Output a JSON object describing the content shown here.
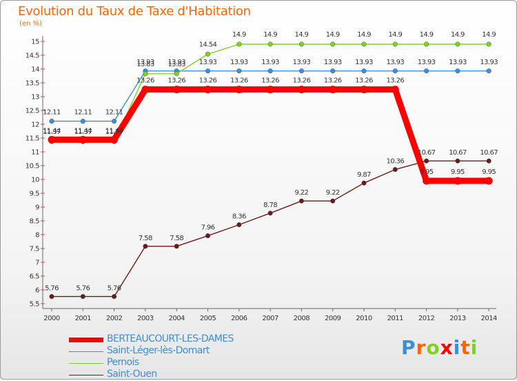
{
  "chart_data": {
    "type": "line",
    "title": "Evolution du Taux de Taxe d'Habitation",
    "ylabel": "(en %)",
    "xlabel": "",
    "ylim": [
      5.5,
      15
    ],
    "yticks": [
      "5.5",
      "6",
      "6.5",
      "7",
      "7.5",
      "8",
      "8.5",
      "9",
      "9.5",
      "10",
      "10.5",
      "11",
      "11.5",
      "12",
      "12.5",
      "13",
      "13.5",
      "14",
      "14.5",
      "15"
    ],
    "x": [
      "2000",
      "2001",
      "2002",
      "2003",
      "2004",
      "2005",
      "2006",
      "2007",
      "2008",
      "2009",
      "2010",
      "2011",
      "2012",
      "2013",
      "2014"
    ],
    "grid": false,
    "legend_position": "bottom-left",
    "series": [
      {
        "name": "BERTEAUCOURT-LES-DAMES",
        "color": "#ff0000",
        "values": [
          11.44,
          11.44,
          11.44,
          13.26,
          13.26,
          13.26,
          13.26,
          13.26,
          13.26,
          13.26,
          13.26,
          13.26,
          9.95,
          9.95,
          9.95
        ],
        "labels": [
          "11.44",
          "11.44",
          "11.44",
          "13.26",
          "13.26",
          "13.26",
          "13.26",
          "13.26",
          "13.26",
          "13.26",
          "13.26",
          "13.26",
          "9.95",
          "9.95",
          "9.95"
        ]
      },
      {
        "name": "Saint-Léger-lès-Domart",
        "color": "#3d8ed8",
        "values": [
          12.11,
          12.11,
          12.11,
          13.93,
          13.93,
          13.93,
          13.93,
          13.93,
          13.93,
          13.93,
          13.93,
          13.93,
          13.93,
          13.93,
          13.93
        ],
        "labels": [
          "12.11",
          "12.11",
          "12.11",
          "13.93",
          "13.93",
          "13.93",
          "13.93",
          "13.93",
          "13.93",
          "13.93",
          "13.93",
          "13.93",
          "13.93",
          "13.93",
          "13.93"
        ]
      },
      {
        "name": "Pernois",
        "color": "#7ed321",
        "values": [
          11.37,
          11.37,
          11.37,
          13.83,
          13.83,
          14.54,
          14.9,
          14.9,
          14.9,
          14.9,
          14.9,
          14.9,
          14.9,
          14.9,
          14.9
        ],
        "labels": [
          "11.37",
          "11.37",
          "11.37",
          "13.83",
          "13.83",
          "14.54",
          "14.9",
          "14.9",
          "14.9",
          "14.9",
          "14.9",
          "14.9",
          "14.9",
          "14.9",
          "14.9"
        ]
      },
      {
        "name": "Saint-Ouen",
        "color": "#6b1a1a",
        "values": [
          5.76,
          5.76,
          5.76,
          7.58,
          7.58,
          7.96,
          8.36,
          8.78,
          9.22,
          9.22,
          9.87,
          10.36,
          10.67,
          10.67,
          10.67
        ],
        "labels": [
          "5.76",
          "5.76",
          "5.76",
          "7.58",
          "7.58",
          "7.96",
          "8.36",
          "8.78",
          "9.22",
          "9.22",
          "9.87",
          "10.36",
          "10.67",
          "10.67",
          "10.67"
        ]
      }
    ]
  },
  "brand": {
    "letters": [
      "P",
      "r",
      "o",
      "x",
      "i",
      "t",
      "i"
    ],
    "colors": [
      "#3d8ed8",
      "#ff6600",
      "#7ed321",
      "#ff0000",
      "#3d8ed8",
      "#ff6600",
      "#7ed321"
    ]
  }
}
